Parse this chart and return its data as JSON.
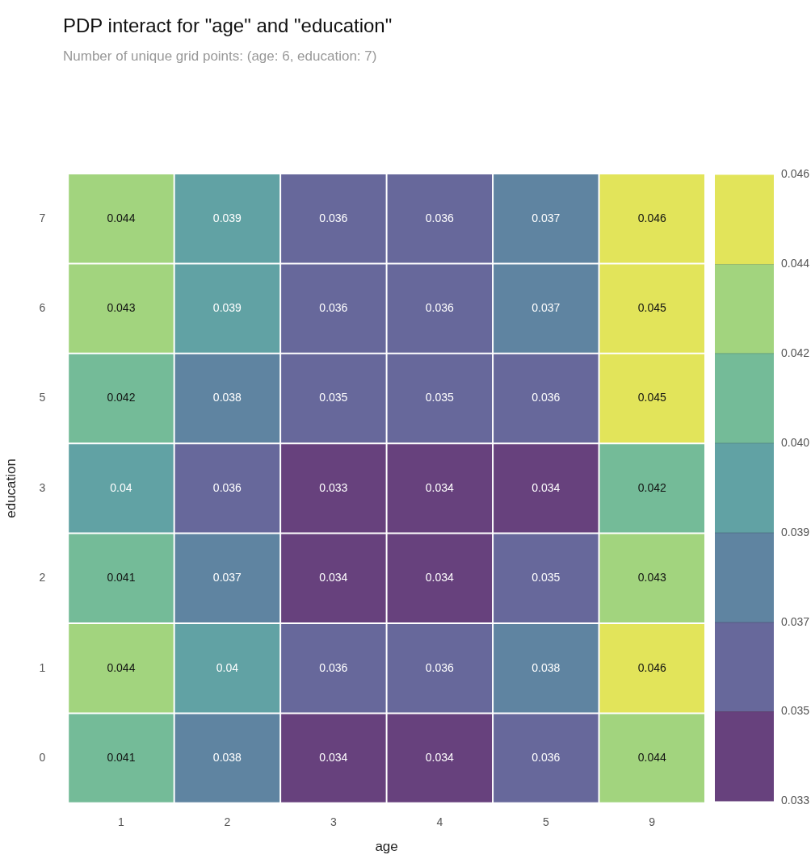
{
  "chart_data": {
    "type": "heatmap",
    "title": "PDP interact for \"age\" and \"education\"",
    "subtitle": "Number of unique grid points: (age: 6, education: 7)",
    "xlabel": "age",
    "ylabel": "education",
    "categories": [
      "1",
      "2",
      "3",
      "4",
      "5",
      "9"
    ],
    "y_categories": [
      "7",
      "6",
      "5",
      "3",
      "2",
      "1",
      "0"
    ],
    "cells": [
      [
        0.044,
        0.039,
        0.036,
        0.036,
        0.037,
        0.046
      ],
      [
        0.043,
        0.039,
        0.036,
        0.036,
        0.037,
        0.045
      ],
      [
        0.042,
        0.038,
        0.035,
        0.035,
        0.036,
        0.045
      ],
      [
        0.04,
        0.036,
        0.033,
        0.034,
        0.034,
        0.042
      ],
      [
        0.041,
        0.037,
        0.034,
        0.034,
        0.035,
        0.043
      ],
      [
        0.044,
        0.04,
        0.036,
        0.036,
        0.038,
        0.046
      ],
      [
        0.041,
        0.038,
        0.034,
        0.034,
        0.036,
        0.044
      ]
    ],
    "data_labels": true,
    "clim": [
      0.033,
      0.046
    ],
    "cticks": [
      0.033,
      {
        "value": 0.03486,
        "label": "0.035"
      },
      {
        "value": 0.03671,
        "label": "0.037"
      },
      {
        "value": 0.03857,
        "label": "0.039"
      },
      {
        "value": 0.04043,
        "label": "0.040"
      },
      {
        "value": 0.04229,
        "label": "0.042"
      },
      {
        "value": 0.04414,
        "label": "0.044"
      },
      0.046
    ]
  }
}
